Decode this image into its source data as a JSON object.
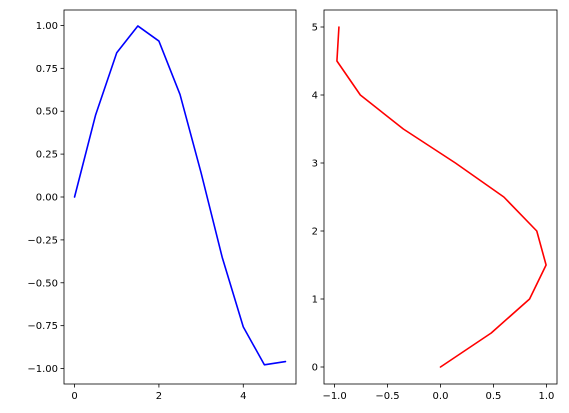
{
  "chart_data": [
    {
      "type": "line",
      "title": "",
      "xlabel": "",
      "ylabel": "",
      "xlim": [
        -0.25,
        5.25
      ],
      "ylim": [
        -1.09,
        1.09
      ],
      "xticks": [
        0,
        2,
        4
      ],
      "xtick_labels": [
        "0",
        "2",
        "4"
      ],
      "yticks": [
        -1.0,
        -0.75,
        -0.5,
        -0.25,
        0.0,
        0.25,
        0.5,
        0.75,
        1.0
      ],
      "ytick_labels": [
        "−1.00",
        "−0.75",
        "−0.50",
        "−0.25",
        "0.00",
        "0.25",
        "0.50",
        "0.75",
        "1.00"
      ],
      "grid": false,
      "series": [
        {
          "color": "#0000ff",
          "x": [
            0,
            0.5,
            1.0,
            1.5,
            2.0,
            2.5,
            3.0,
            3.5,
            4.0,
            4.5,
            5.0
          ],
          "y": [
            0.0,
            0.479,
            0.841,
            0.997,
            0.909,
            0.598,
            0.141,
            -0.351,
            -0.757,
            -0.978,
            -0.959
          ]
        }
      ]
    },
    {
      "type": "line",
      "title": "",
      "xlabel": "",
      "ylabel": "",
      "xlim": [
        -1.1,
        1.1
      ],
      "ylim": [
        -0.25,
        5.25
      ],
      "xticks": [
        -1.0,
        -0.5,
        0.0,
        0.5,
        1.0
      ],
      "xtick_labels": [
        "−1.0",
        "−0.5",
        "0.0",
        "0.5",
        "1.0"
      ],
      "yticks": [
        0,
        1,
        2,
        3,
        4,
        5
      ],
      "ytick_labels": [
        "0",
        "1",
        "2",
        "3",
        "4",
        "5"
      ],
      "grid": false,
      "series": [
        {
          "color": "#ff0000",
          "x": [
            0.0,
            0.479,
            0.841,
            0.997,
            0.909,
            0.598,
            0.141,
            -0.351,
            -0.757,
            -0.978,
            -0.959
          ],
          "y": [
            0,
            0.5,
            1.0,
            1.5,
            2.0,
            2.5,
            3.0,
            3.5,
            4.0,
            4.5,
            5.0
          ]
        }
      ]
    }
  ]
}
